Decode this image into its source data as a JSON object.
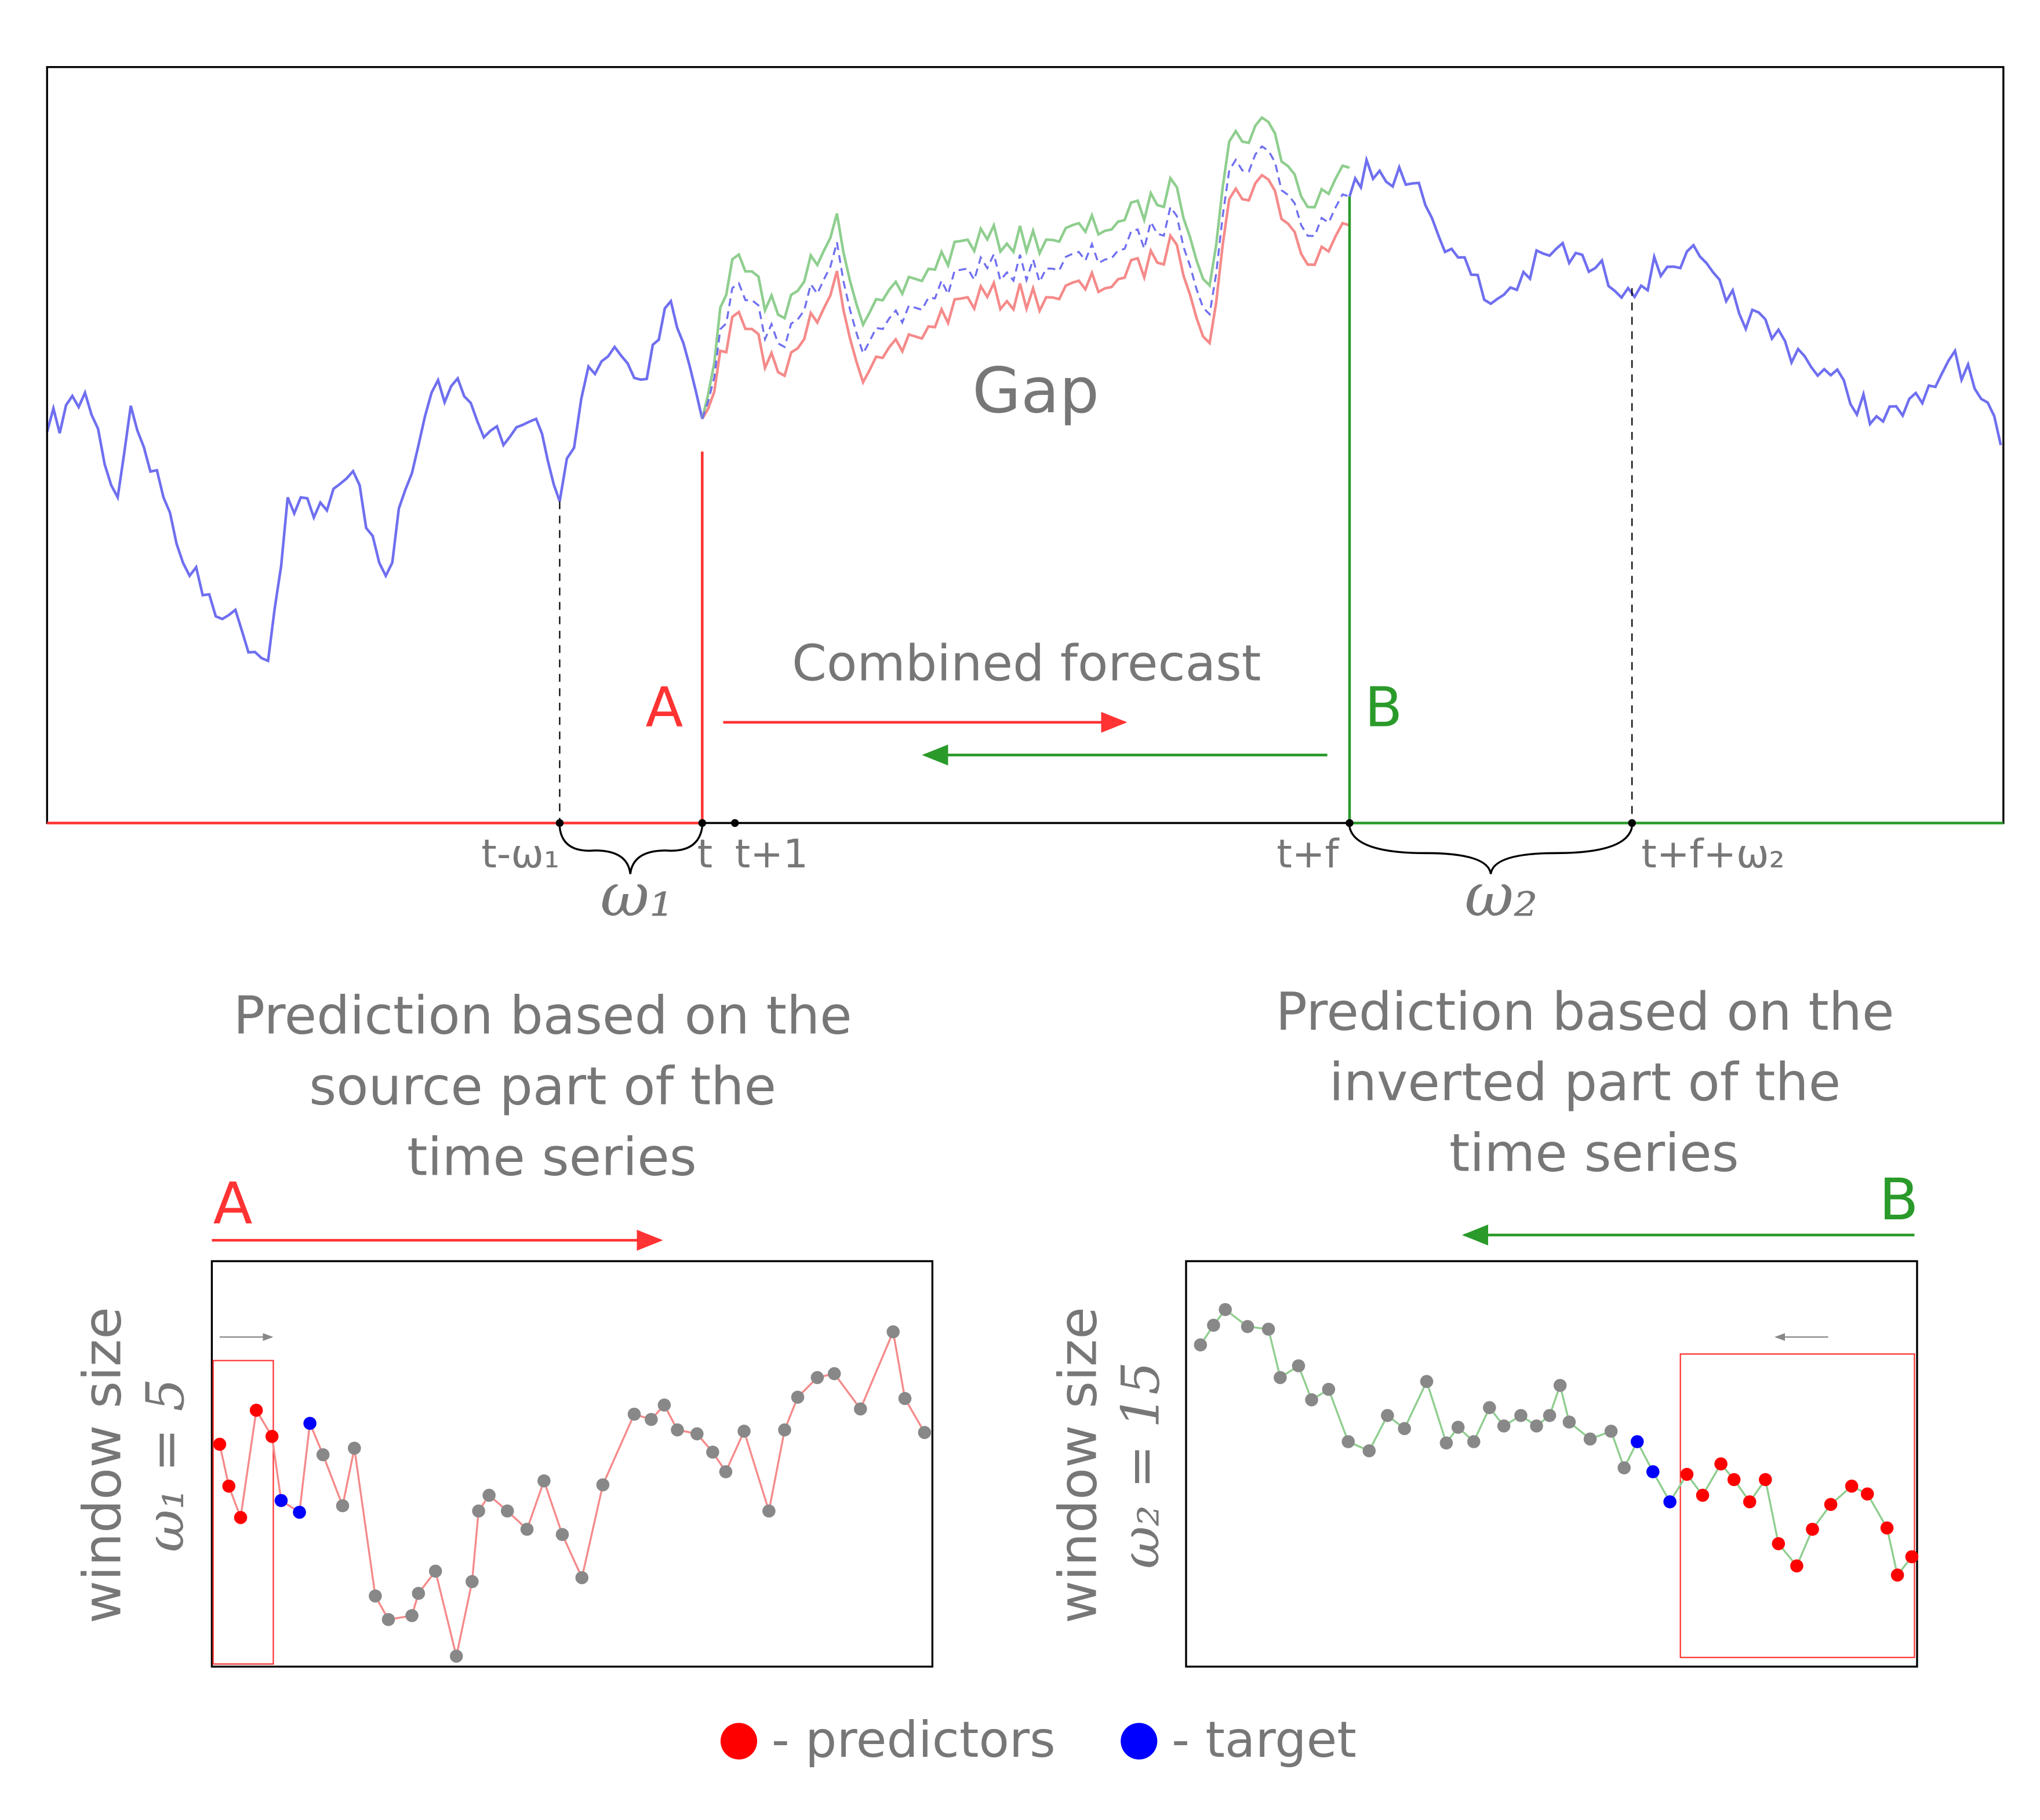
{
  "top_panel": {
    "gap_label": "Gap",
    "combined_label": "Combined forecast",
    "marker_a": "A",
    "marker_b": "B",
    "axis_labels": [
      "t-ω₁",
      "t",
      "t+1",
      "t+f",
      "t+f+ω₂"
    ],
    "window_labels": [
      "ω₁",
      "ω₂"
    ]
  },
  "left_panel": {
    "caption": [
      "Prediction based on the",
      "source part of the",
      "time series"
    ],
    "direction": "A",
    "axis_title": "window size",
    "window": "ω₁ = 5"
  },
  "right_panel": {
    "caption": [
      "Prediction based on the",
      "inverted part of the",
      "time series"
    ],
    "direction": "B",
    "axis_title": "window size",
    "window": "ω₂ = 15"
  },
  "legend": [
    "- predictors",
    "- target"
  ]
}
